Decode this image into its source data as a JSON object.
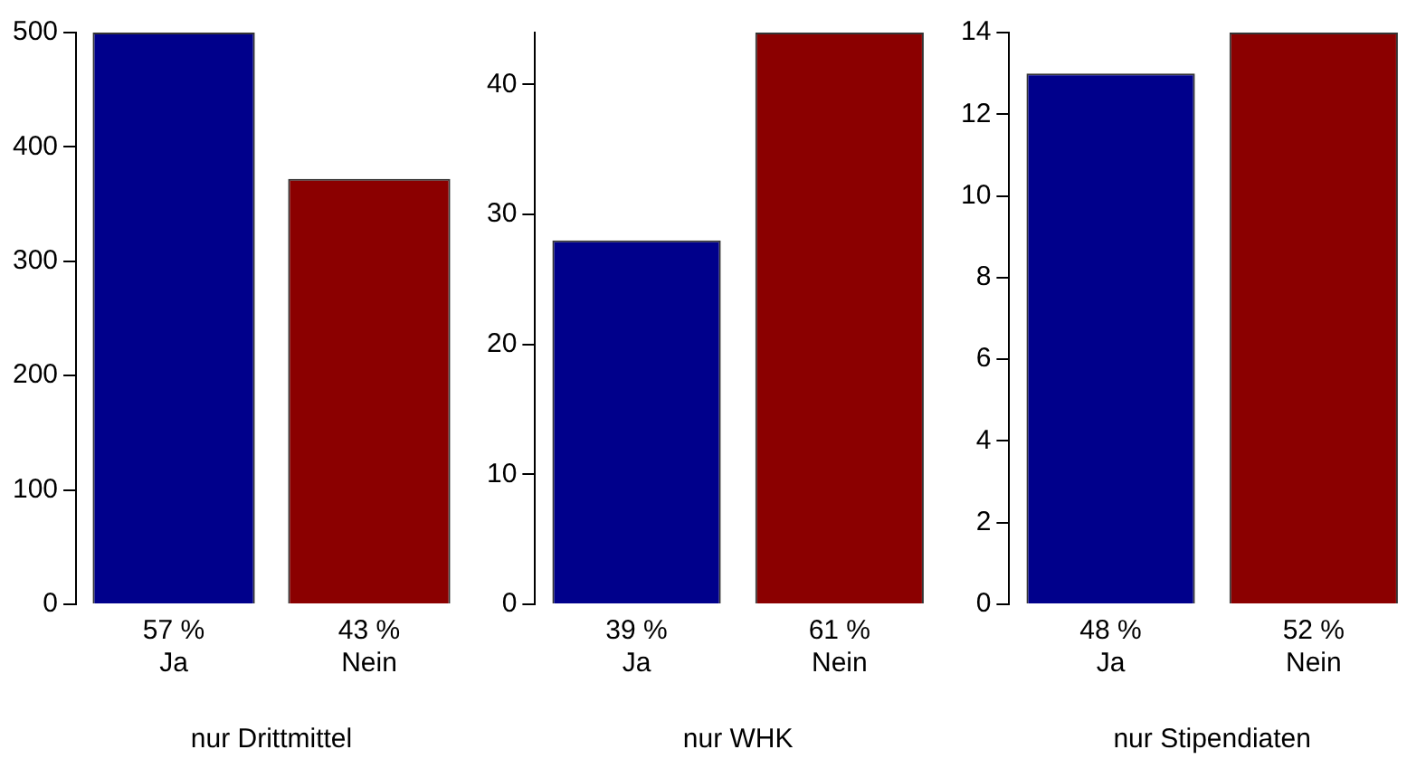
{
  "chart_data": [
    {
      "type": "bar",
      "xlabel": "nur Drittmittel",
      "categories": [
        "57 %\nJa",
        "43 %\nNein"
      ],
      "values": [
        500,
        372
      ],
      "colors": [
        "#00008b",
        "#8b0000"
      ],
      "ylim": [
        0,
        500
      ],
      "yticks": [
        0,
        100,
        200,
        300,
        400,
        500
      ],
      "grid": false,
      "legend": false
    },
    {
      "type": "bar",
      "xlabel": "nur WHK",
      "categories": [
        "39 %\nJa",
        "61 %\nNein"
      ],
      "values": [
        28,
        44
      ],
      "colors": [
        "#00008b",
        "#8b0000"
      ],
      "ylim": [
        0,
        44
      ],
      "yticks": [
        0,
        10,
        20,
        30,
        40
      ],
      "grid": false,
      "legend": false
    },
    {
      "type": "bar",
      "xlabel": "nur Stipendiaten",
      "categories": [
        "48 %\nJa",
        "52 %\nNein"
      ],
      "values": [
        13,
        14
      ],
      "colors": [
        "#00008b",
        "#8b0000"
      ],
      "ylim": [
        0,
        14
      ],
      "yticks": [
        0,
        2,
        4,
        6,
        8,
        10,
        12,
        14
      ],
      "grid": false,
      "legend": false
    }
  ]
}
